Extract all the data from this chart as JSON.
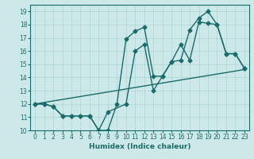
{
  "title": "",
  "xlabel": "Humidex (Indice chaleur)",
  "bg_color": "#cce8e8",
  "line_color": "#1a6b6b",
  "xlim": [
    -0.5,
    23.5
  ],
  "ylim": [
    10,
    19.5
  ],
  "yticks": [
    10,
    11,
    12,
    13,
    14,
    15,
    16,
    17,
    18,
    19
  ],
  "xticks": [
    0,
    1,
    2,
    3,
    4,
    5,
    6,
    7,
    8,
    9,
    10,
    11,
    12,
    13,
    14,
    15,
    16,
    17,
    18,
    19,
    20,
    21,
    22,
    23
  ],
  "line1_x": [
    0,
    1,
    2,
    3,
    4,
    5,
    6,
    7,
    8,
    9,
    10,
    11,
    12,
    13,
    14,
    15,
    16,
    17,
    18,
    19,
    20,
    21,
    22,
    23
  ],
  "line1_y": [
    12,
    12,
    11.8,
    11.1,
    11.1,
    11.1,
    11.1,
    10.0,
    10.0,
    12.0,
    16.9,
    17.5,
    17.8,
    14.1,
    14.1,
    15.2,
    15.3,
    17.6,
    18.5,
    19.0,
    18.0,
    15.8,
    15.8,
    14.7
  ],
  "line2_x": [
    0,
    1,
    2,
    3,
    4,
    5,
    6,
    7,
    8,
    10,
    11,
    12,
    13,
    14,
    15,
    16,
    17,
    18,
    19,
    20,
    21,
    22,
    23
  ],
  "line2_y": [
    12,
    12,
    11.8,
    11.1,
    11.1,
    11.1,
    11.1,
    10.0,
    11.4,
    12.0,
    16.0,
    16.5,
    13.0,
    14.1,
    15.2,
    16.5,
    15.3,
    18.2,
    18.1,
    18.0,
    15.8,
    15.8,
    14.7
  ],
  "line3_x": [
    0,
    23
  ],
  "line3_y": [
    12,
    14.6
  ],
  "grid_color": "#afd4d4",
  "marker": "D",
  "marker_size": 2.5,
  "linewidth": 1.0
}
